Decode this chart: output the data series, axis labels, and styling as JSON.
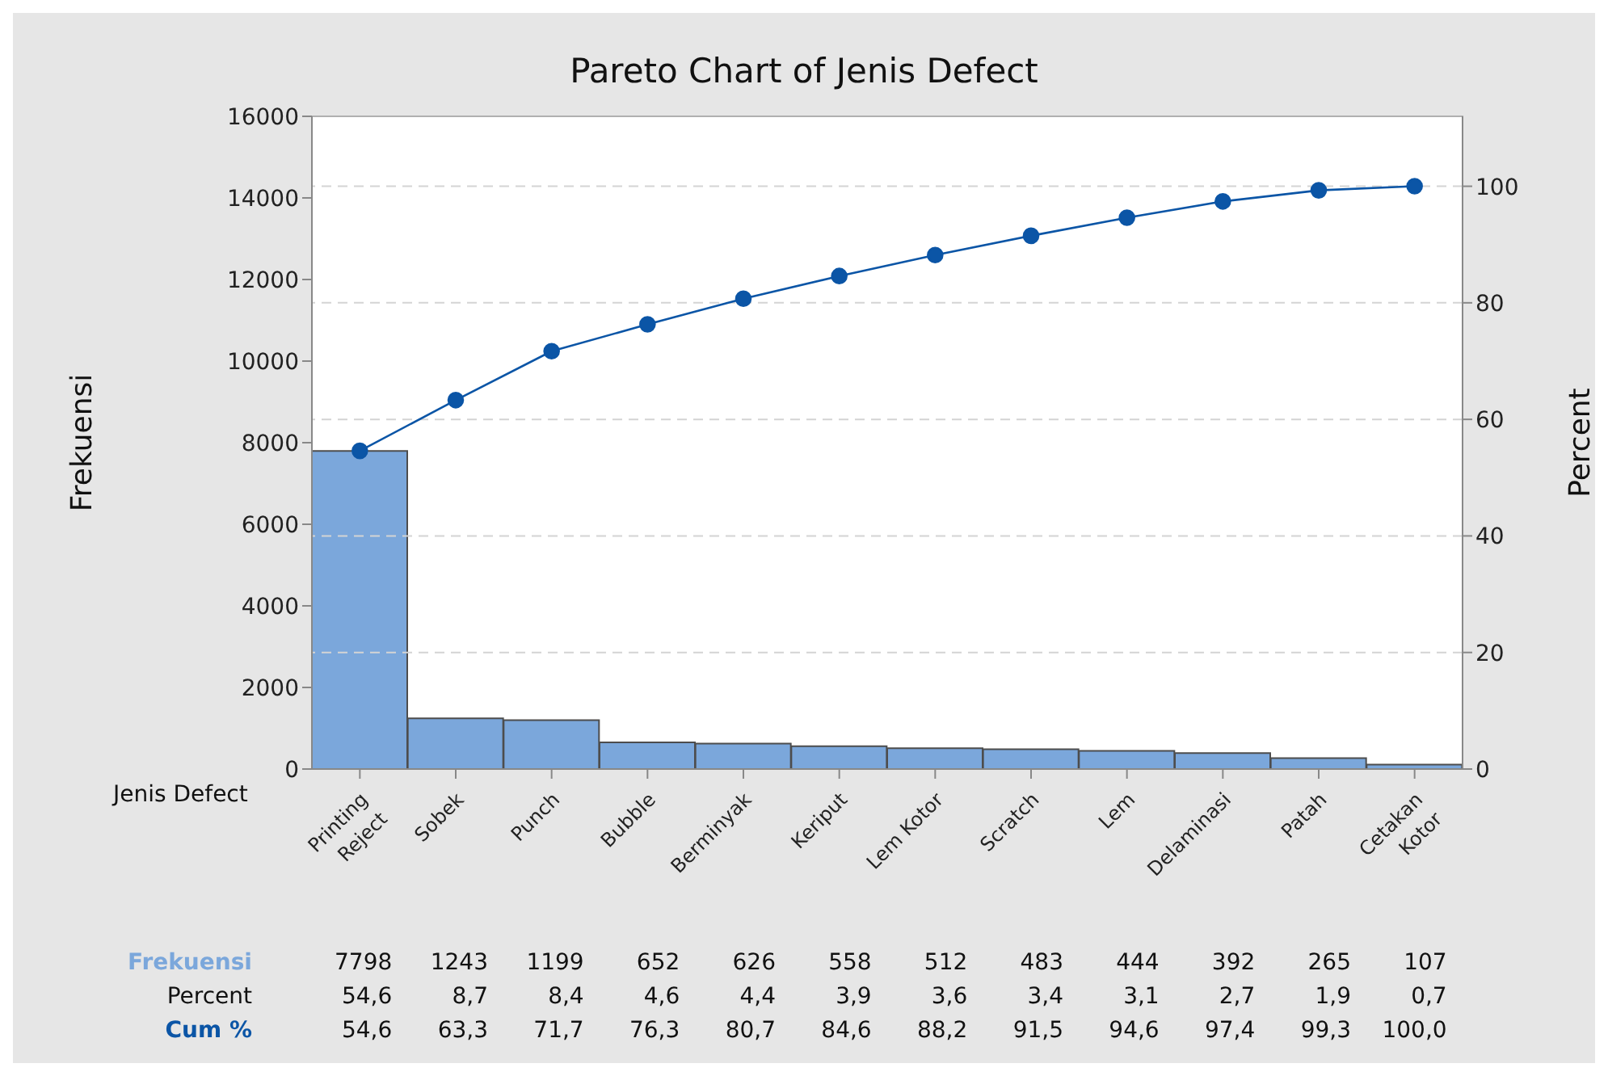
{
  "chart_data": {
    "type": "bar",
    "title": "Pareto Chart of Jenis Defect",
    "xlabel": "Jenis Defect",
    "ylabel": "Frekuensi",
    "y2label": "Percent",
    "categories": [
      "Printing Reject",
      "Sobek",
      "Punch",
      "Bubble",
      "Berminyak",
      "Keriput",
      "Lem Kotor",
      "Scratch",
      "Lem",
      "Delaminasi",
      "Patah",
      "Cetakan Kotor"
    ],
    "series": [
      {
        "name": "Frekuensi",
        "color": "#7ba7db",
        "values": [
          7798,
          1243,
          1199,
          652,
          626,
          558,
          512,
          483,
          444,
          392,
          265,
          107
        ],
        "value_labels": [
          "7798",
          "1243",
          "1199",
          "652",
          "626",
          "558",
          "512",
          "483",
          "444",
          "392",
          "265",
          "107"
        ]
      },
      {
        "name": "Cum %",
        "type": "line",
        "axis": "y2",
        "color": "#0b55a6",
        "values": [
          54.6,
          63.3,
          71.7,
          76.3,
          80.7,
          84.6,
          88.2,
          91.5,
          94.6,
          97.4,
          99.3,
          100.0
        ],
        "value_labels": [
          "54,6",
          "63,3",
          "71,7",
          "76,3",
          "80,7",
          "84,6",
          "88,2",
          "91,5",
          "94,6",
          "97,4",
          "99,3",
          "100,0"
        ]
      }
    ],
    "annotations": [
      "Percent",
      "54,6",
      "8,7",
      "8,4",
      "4,6",
      "4,4",
      "3,9",
      "3,6",
      "3,4",
      "3,1",
      "2,7",
      "1,9",
      "0,7"
    ],
    "ylim": [
      0,
      16000
    ],
    "yticks": [
      0,
      2000,
      4000,
      6000,
      8000,
      10000,
      12000,
      14000,
      16000
    ],
    "y2lim": [
      0,
      112
    ],
    "y2ticks": [
      0,
      20,
      40,
      60,
      80,
      100
    ],
    "grid": "y2",
    "marker": "circle",
    "line_style": "solid",
    "legend": false
  }
}
